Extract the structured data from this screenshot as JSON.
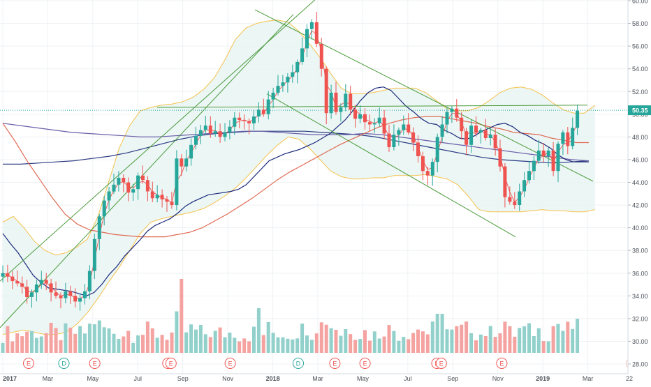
{
  "chart_data": {
    "type": "candlestick",
    "title": "",
    "xlabel": "",
    "ylabel": "",
    "ylim": [
      27.2,
      60.2
    ],
    "grid": true,
    "current_price": "50.35",
    "y_ticks": [
      "28.00",
      "30.00",
      "32.00",
      "34.00",
      "36.00",
      "38.00",
      "40.00",
      "42.00",
      "44.00",
      "46.00",
      "48.00",
      "50.00",
      "52.00",
      "54.00",
      "56.00",
      "58.00",
      "60.00"
    ],
    "x_ticks": [
      "2017",
      "Mar",
      "May",
      "Jul",
      "Sep",
      "Nov",
      "2018",
      "Mar",
      "May",
      "Jul",
      "Sep",
      "Nov",
      "2019",
      "Mar",
      "22"
    ],
    "events": [
      "E",
      "D",
      "E",
      "E",
      "E",
      "E",
      "D",
      "E",
      "E",
      "E",
      "E",
      "E"
    ],
    "closes": [
      36.0,
      35.7,
      35.3,
      35.1,
      34.8,
      33.9,
      34.3,
      35.0,
      35.4,
      35.1,
      34.3,
      34.0,
      33.8,
      34.4,
      34.0,
      33.5,
      33.8,
      34.4,
      36.2,
      39.0,
      41.0,
      42.4,
      43.2,
      43.8,
      44.4,
      44.0,
      43.1,
      43.4,
      44.6,
      44.2,
      43.2,
      42.6,
      42.9,
      42.5,
      42.3,
      42.0,
      46.1,
      45.4,
      46.1,
      47.3,
      48.1,
      48.6,
      49.0,
      48.3,
      48.5,
      48.0,
      48.4,
      48.9,
      49.7,
      49.5,
      49.4,
      49.2,
      49.8,
      50.4,
      50.0,
      51.3,
      51.9,
      52.5,
      52.8,
      53.3,
      53.7,
      54.6,
      55.8,
      57.5,
      58.1,
      56.2,
      54.0,
      50.1,
      51.9,
      50.2,
      50.6,
      51.8,
      50.4,
      49.6,
      50.0,
      49.3,
      49.1,
      49.2,
      49.7,
      48.3,
      47.1,
      48.2,
      48.6,
      49.1,
      48.4,
      47.5,
      46.3,
      45.0,
      44.6,
      45.8,
      48.0,
      49.1,
      50.2,
      50.5,
      49.7,
      48.5,
      47.3,
      49.0,
      48.4,
      48.6,
      47.9,
      48.2,
      47.0,
      45.4,
      42.7,
      42.3,
      42.0,
      43.2,
      44.2,
      45.0,
      45.9,
      46.8,
      46.3,
      46.8,
      45.0,
      47.4,
      48.4,
      47.2,
      48.8,
      50.3
    ],
    "ma_20": [
      39.5,
      38.6,
      37.8,
      36.8,
      35.8,
      35.2,
      34.7,
      34.6,
      34.5,
      34.4,
      34.2,
      34.0,
      34.3,
      35.0,
      35.9,
      36.6,
      37.5,
      38.2,
      38.9,
      39.7,
      40.2,
      40.5,
      40.8,
      41.3,
      41.9,
      42.3,
      42.6,
      42.9,
      43.0,
      43.1,
      43.2,
      43.4,
      43.8,
      44.5,
      45.2,
      45.9,
      46.2,
      46.5,
      46.7,
      46.9,
      47.2,
      47.5,
      47.9,
      48.3,
      48.9,
      49.5,
      50.3,
      51.2,
      51.9,
      52.3,
      52.4,
      52.1,
      51.4,
      50.7,
      50.2,
      49.6,
      49.2,
      49.1,
      48.6,
      48.3,
      47.9,
      47.8,
      48.1,
      48.5,
      48.8,
      49.1,
      49.2,
      48.9,
      48.4,
      48.1,
      47.7,
      47.4,
      47.0,
      46.4,
      46.0,
      45.8,
      45.8,
      45.8
    ],
    "ma_50": [
      49.2,
      47.6,
      45.8,
      44.2,
      42.6,
      41.2,
      40.3,
      39.8,
      39.6,
      39.4,
      39.3,
      39.2,
      39.2,
      39.2,
      39.4,
      39.6,
      40.0,
      40.6,
      41.2,
      41.9,
      42.6,
      43.4,
      44.2,
      44.9,
      45.5,
      46.1,
      46.7,
      47.3,
      47.8,
      48.3,
      48.8,
      49.2,
      49.5,
      49.7,
      49.8,
      49.8,
      49.6,
      49.4,
      49.2,
      48.9,
      48.7,
      48.4,
      48.3,
      48.2,
      47.9,
      47.7,
      47.5,
      47.5
    ],
    "ma_100": [
      49.2,
      49.0,
      48.8,
      48.6,
      48.4,
      48.3,
      48.2,
      48.1,
      48.0,
      48.0,
      48.1,
      48.2,
      48.3,
      48.4,
      48.5,
      48.5,
      48.4,
      48.3,
      48.2,
      48.2,
      48.2,
      48.3,
      48.2,
      48.0,
      47.8,
      47.6,
      47.4,
      47.2,
      47.0,
      46.8,
      46.6,
      46.4,
      46.2,
      46.0,
      45.9
    ],
    "ma_200": [
      45.6,
      45.6,
      45.7,
      45.8,
      45.9,
      46.1,
      46.3,
      46.6,
      47.0,
      47.4,
      47.8,
      48.1,
      48.3,
      48.4,
      48.5,
      48.5,
      48.5,
      48.5,
      48.4,
      48.3,
      48.2,
      48.0,
      47.7,
      47.4,
      47.1,
      46.8,
      46.5,
      46.2,
      46.0,
      45.9,
      45.8,
      45.7,
      45.8,
      45.9
    ],
    "bb_upper": [
      40.5,
      41.0,
      40.0,
      38.8,
      38.0,
      37.6,
      37.8,
      38.3,
      39.0,
      41.0,
      44.0,
      47.0,
      49.0,
      50.3,
      50.6,
      50.8,
      50.9,
      51.1,
      51.5,
      52.2,
      53.2,
      54.8,
      56.6,
      57.6,
      58.0,
      58.2,
      58.3,
      58.1,
      57.3,
      56.2,
      55.0,
      53.6,
      52.3,
      51.8,
      51.8,
      51.9,
      52.1,
      52.3,
      52.3,
      52.3,
      51.9,
      51.2,
      50.5,
      50.3,
      50.3,
      50.6,
      51.2,
      51.9,
      52.3,
      52.4,
      52.2,
      51.7,
      51.0,
      50.4,
      50.1,
      50.1,
      50.8
    ],
    "bb_lower": [
      30.6,
      30.8,
      31.0,
      30.8,
      30.6,
      30.6,
      30.8,
      31.5,
      32.5,
      33.8,
      35.2,
      36.5,
      38.0,
      39.5,
      40.5,
      40.8,
      41.0,
      41.2,
      41.4,
      41.7,
      42.2,
      42.8,
      43.5,
      44.4,
      45.4,
      46.4,
      47.3,
      48.0,
      47.8,
      47.0,
      46.0,
      45.0,
      44.5,
      44.3,
      44.3,
      44.4,
      44.4,
      44.6,
      44.6,
      44.6,
      44.7,
      44.5,
      44.3,
      43.8,
      42.8,
      41.6,
      41.4,
      41.4,
      41.4,
      41.4,
      41.5,
      41.6,
      41.5,
      41.5,
      41.4,
      41.4,
      41.6
    ],
    "volume_max": 10
  },
  "colors": {
    "up": "#26a69a",
    "down": "#ef5350",
    "up_volume": "#92d1cb",
    "down_volume": "#f4a3a1",
    "ma_20": "#ef5350",
    "ma_50": "#e06a52",
    "ma_100": "#6b5ea8",
    "ma_200": "#2a3a82",
    "bollinger_mid": "#1c2a7a",
    "bollinger_band": "#f5c24a",
    "bollinger_fill": "#e8f5f3",
    "trendline": "#4a9a3a",
    "price_label_bg": "#26a69a"
  }
}
